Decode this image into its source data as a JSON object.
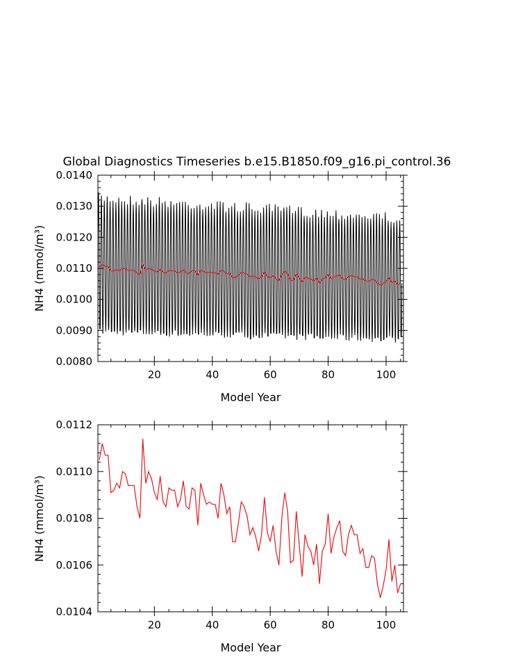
{
  "title": "Global Diagnostics Timeseries b.e15.B1850.f09_g16.pi_control.36",
  "colors": {
    "monthly": "#000000",
    "annual": "#e8141b",
    "axis": "#000000"
  },
  "chart_data": [
    {
      "type": "line",
      "title": "Global Diagnostics Timeseries b.e15.B1850.f09_g16.pi_control.36",
      "xlabel": "Model Year",
      "ylabel": "NH4 (mmol/m³)",
      "xlim": [
        0.5,
        106
      ],
      "ylim": [
        0.008,
        0.014
      ],
      "xticks": [
        20,
        40,
        60,
        80,
        100
      ],
      "yticks": [
        0.008,
        0.009,
        0.01,
        0.011,
        0.012,
        0.013,
        0.014
      ],
      "ytick_labels": [
        "0.0080",
        "0.0090",
        "0.0100",
        "0.0110",
        "0.0120",
        "0.0130",
        "0.0140"
      ],
      "series": [
        {
          "style": "monthly seasonal cycle",
          "color": "#000000",
          "cycle_max_start": 0.01345,
          "cycle_max_end": 0.0128,
          "cycle_min_start": 0.00885,
          "cycle_min_end": 0.0086
        },
        {
          "style": "annual mean",
          "color": "#e8141b"
        }
      ]
    },
    {
      "type": "line",
      "xlabel": "Model Year",
      "ylabel": "NH4 (mmol/m³)",
      "xlim": [
        0.5,
        106
      ],
      "ylim": [
        0.0104,
        0.0112
      ],
      "xticks": [
        20,
        40,
        60,
        80,
        100
      ],
      "yticks": [
        0.0104,
        0.0106,
        0.0108,
        0.011,
        0.0112
      ],
      "ytick_labels": [
        "0.0104",
        "0.0106",
        "0.0108",
        "0.0110",
        "0.0112"
      ],
      "series": [
        {
          "color": "#e8141b",
          "x": [
            1,
            2,
            3,
            4,
            5,
            6,
            7,
            8,
            9,
            10,
            11,
            12,
            13,
            14,
            15,
            16,
            17,
            18,
            19,
            20,
            21,
            22,
            23,
            24,
            25,
            26,
            27,
            28,
            29,
            30,
            31,
            32,
            33,
            34,
            35,
            36,
            37,
            38,
            39,
            40,
            41,
            42,
            43,
            44,
            45,
            46,
            47,
            48,
            49,
            50,
            51,
            52,
            53,
            54,
            55,
            56,
            57,
            58,
            59,
            60,
            61,
            62,
            63,
            64,
            65,
            66,
            67,
            68,
            69,
            70,
            71,
            72,
            73,
            74,
            75,
            76,
            77,
            78,
            79,
            80,
            81,
            82,
            83,
            84,
            85,
            86,
            87,
            88,
            89,
            90,
            91,
            92,
            93,
            94,
            95,
            96,
            97,
            98,
            99,
            100,
            101,
            102,
            103,
            104,
            105
          ],
          "values": [
            0.01105,
            0.01112,
            0.01107,
            0.01107,
            0.01091,
            0.01092,
            0.01095,
            0.01093,
            0.011,
            0.01099,
            0.01094,
            0.01094,
            0.01094,
            0.01085,
            0.0108,
            0.01114,
            0.01095,
            0.011,
            0.01097,
            0.01091,
            0.01088,
            0.01098,
            0.01087,
            0.01085,
            0.01093,
            0.01092,
            0.01092,
            0.01085,
            0.01088,
            0.01096,
            0.01085,
            0.01084,
            0.01093,
            0.01092,
            0.01077,
            0.01095,
            0.0109,
            0.01086,
            0.01087,
            0.01086,
            0.01086,
            0.0108,
            0.01095,
            0.0109,
            0.01082,
            0.01085,
            0.0107,
            0.0107,
            0.01078,
            0.01087,
            0.01085,
            0.01081,
            0.01073,
            0.01076,
            0.01072,
            0.01066,
            0.01073,
            0.01089,
            0.01074,
            0.0107,
            0.01077,
            0.01066,
            0.0106,
            0.0108,
            0.01091,
            0.01083,
            0.01061,
            0.01062,
            0.01083,
            0.01069,
            0.01055,
            0.01073,
            0.01068,
            0.01066,
            0.0106,
            0.01069,
            0.01052,
            0.01066,
            0.01069,
            0.01082,
            0.01065,
            0.01072,
            0.01076,
            0.01079,
            0.01066,
            0.01064,
            0.01073,
            0.01077,
            0.01073,
            0.01073,
            0.01065,
            0.01067,
            0.01059,
            0.01059,
            0.01064,
            0.01063,
            0.01052,
            0.01046,
            0.01051,
            0.01058,
            0.01071,
            0.01053,
            0.0106,
            0.01048,
            0.01052
          ]
        }
      ]
    }
  ]
}
